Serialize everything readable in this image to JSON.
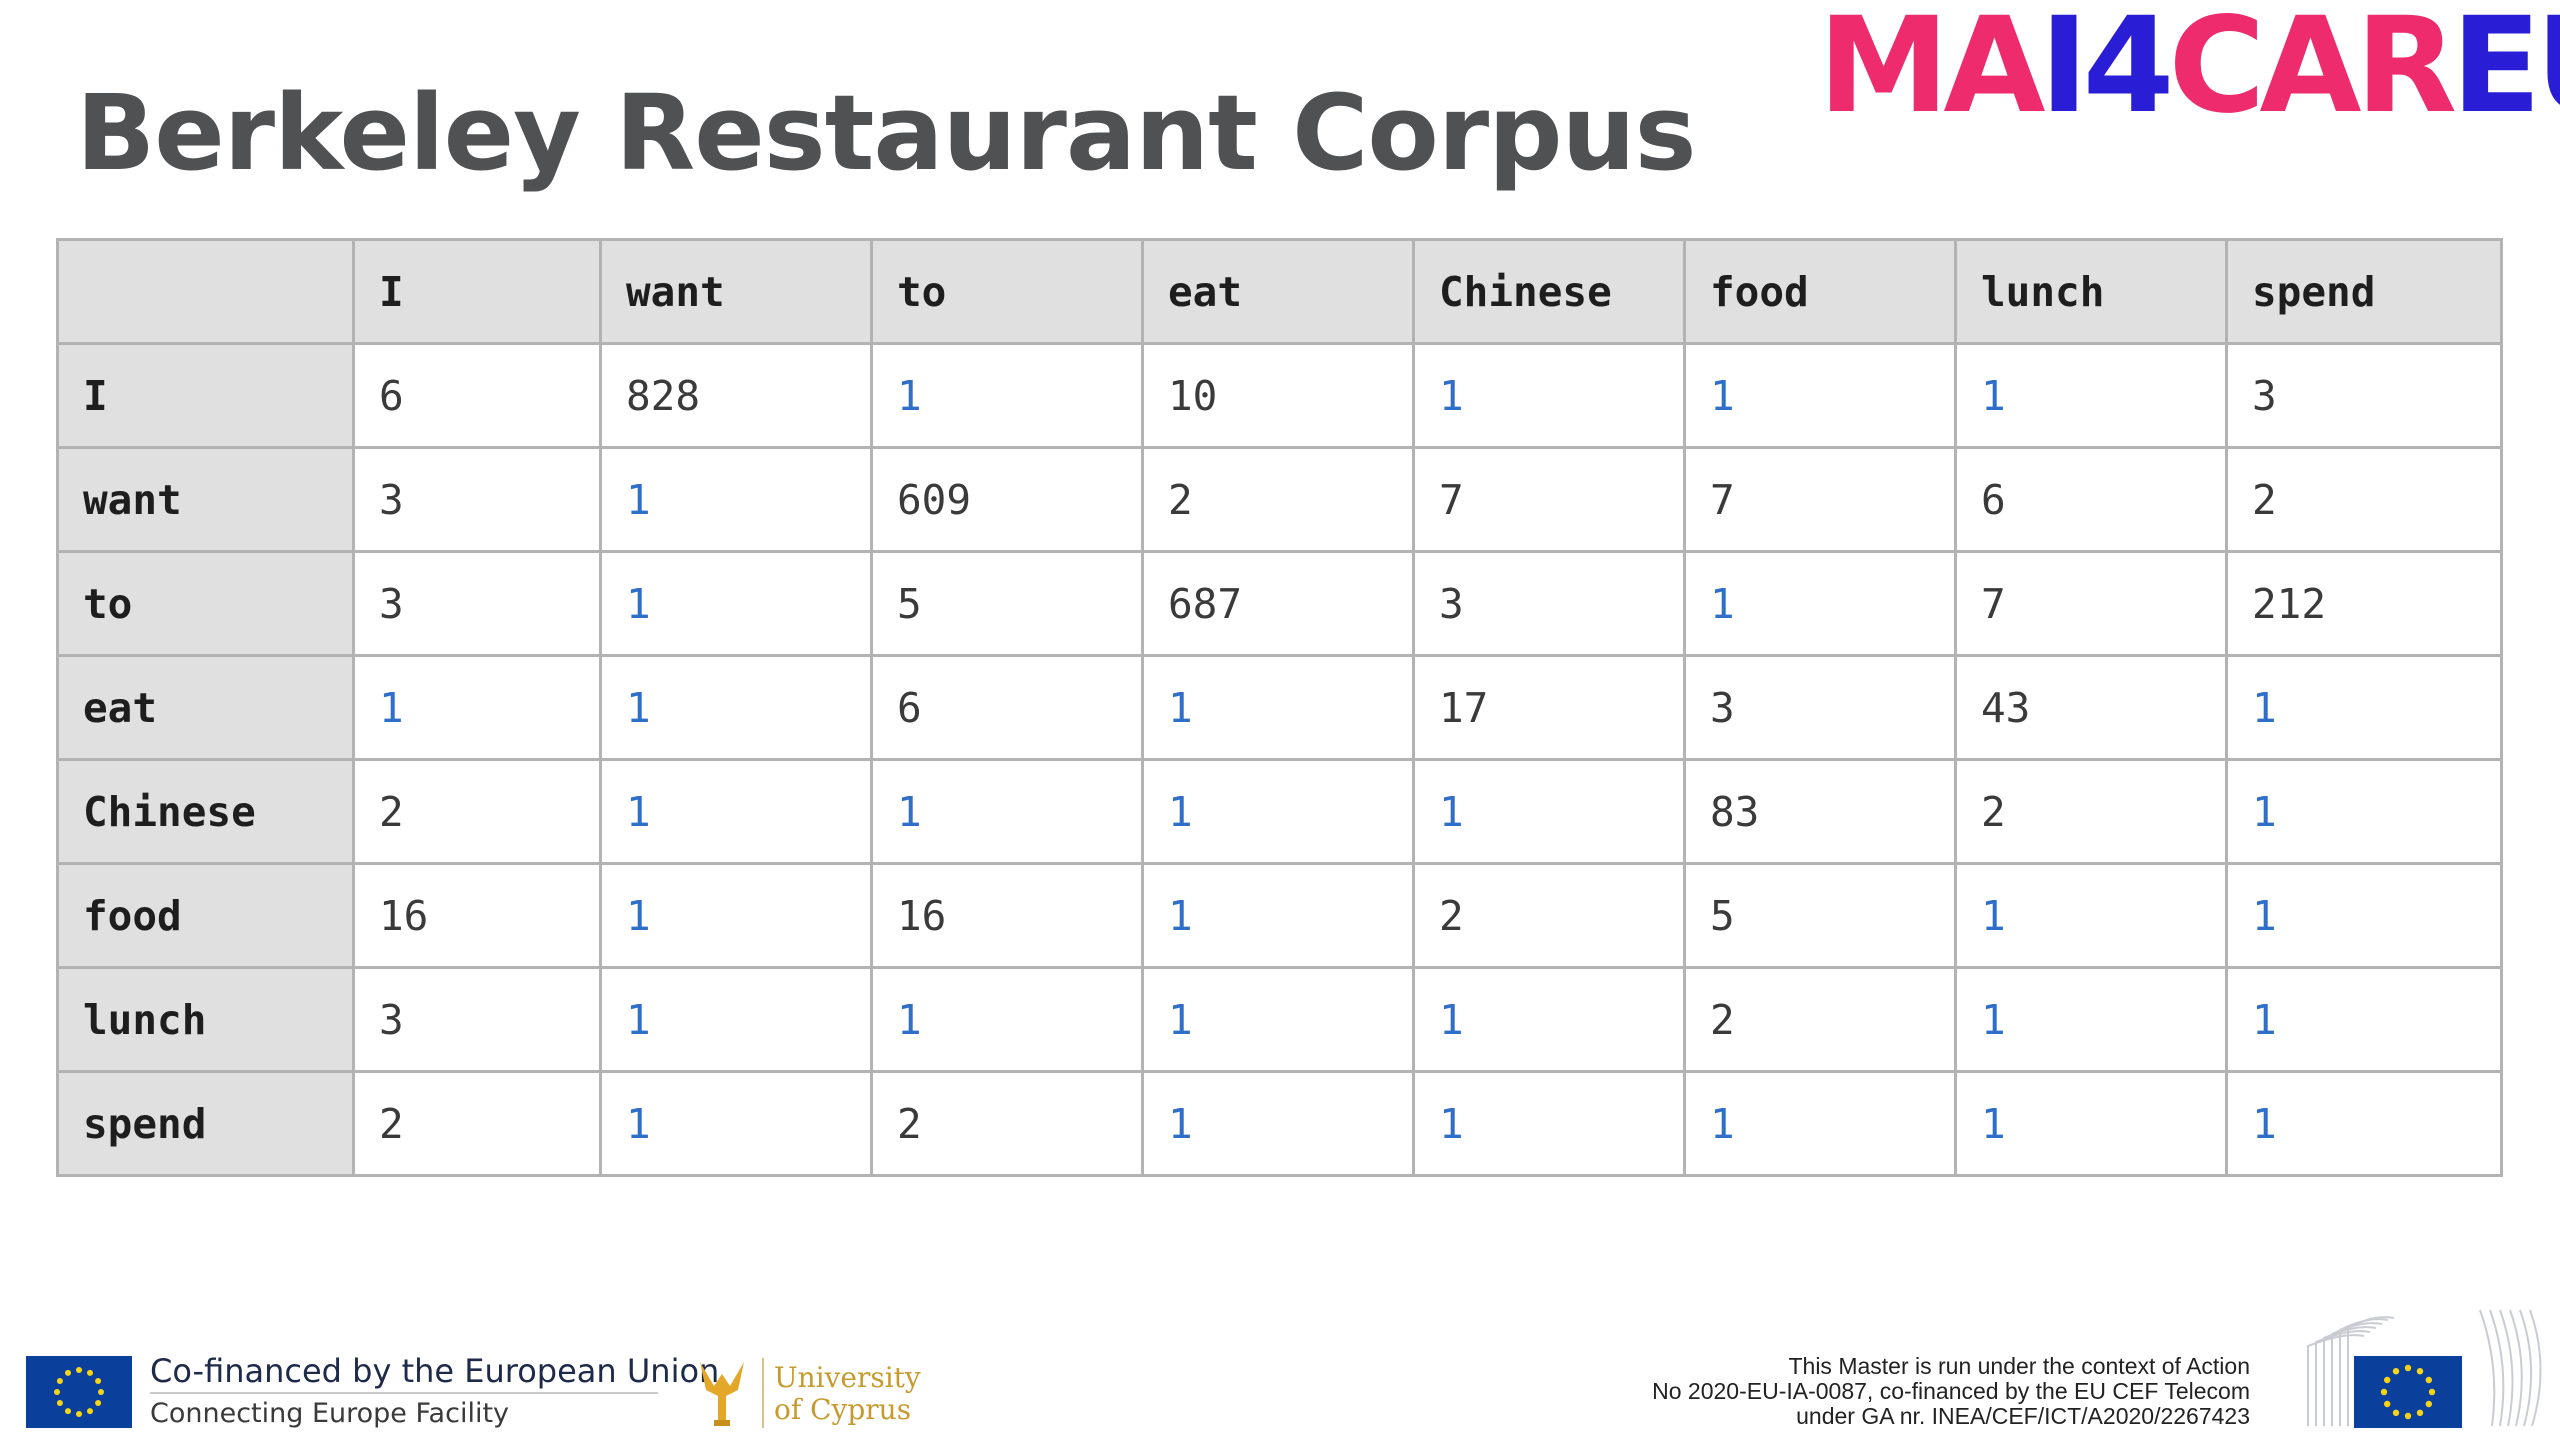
{
  "slide": {
    "title": "Berkeley Restaurant Corpus",
    "logo": {
      "part1": "MA",
      "part2": "I4",
      "part3": "CAR",
      "part4": "EU"
    }
  },
  "table": {
    "columns": [
      "",
      "I",
      "want",
      "to",
      "eat",
      "Chinese",
      "food",
      "lunch",
      "spend"
    ],
    "rows": [
      {
        "label": "I",
        "values": [
          "6",
          "828",
          "1",
          "10",
          "1",
          "1",
          "1",
          "3"
        ]
      },
      {
        "label": "want",
        "values": [
          "3",
          "1",
          "609",
          "2",
          "7",
          "7",
          "6",
          "2"
        ]
      },
      {
        "label": "to",
        "values": [
          "3",
          "1",
          "5",
          "687",
          "3",
          "1",
          "7",
          "212"
        ]
      },
      {
        "label": "eat",
        "values": [
          "1",
          "1",
          "6",
          "1",
          "17",
          "3",
          "43",
          "1"
        ]
      },
      {
        "label": "Chinese",
        "values": [
          "2",
          "1",
          "1",
          "1",
          "1",
          "83",
          "2",
          "1"
        ]
      },
      {
        "label": "food",
        "values": [
          "16",
          "1",
          "16",
          "1",
          "2",
          "5",
          "1",
          "1"
        ]
      },
      {
        "label": "lunch",
        "values": [
          "3",
          "1",
          "1",
          "1",
          "1",
          "2",
          "1",
          "1"
        ]
      },
      {
        "label": "spend",
        "values": [
          "2",
          "1",
          "2",
          "1",
          "1",
          "1",
          "1",
          "1"
        ]
      }
    ],
    "highlight_value": "1",
    "highlight_color": "#2f6fc9"
  },
  "footer": {
    "eu_line1": "Co-financed by the European Union",
    "eu_line2": "Connecting Europe Facility",
    "ucy_line1": "University",
    "ucy_line2": "of Cyprus",
    "notice_line1": "This Master is run under the context of Action",
    "notice_line2": "No 2020-EU-IA-0087, co-financed by the EU CEF Telecom",
    "notice_line3": "under GA nr. INEA/CEF/ICT/A2020/2267423"
  },
  "colors": {
    "logo_pink": "#ee2b6c",
    "logo_blue": "#2a1dd6",
    "title": "#505153",
    "header_bg": "#e0e0e1"
  }
}
